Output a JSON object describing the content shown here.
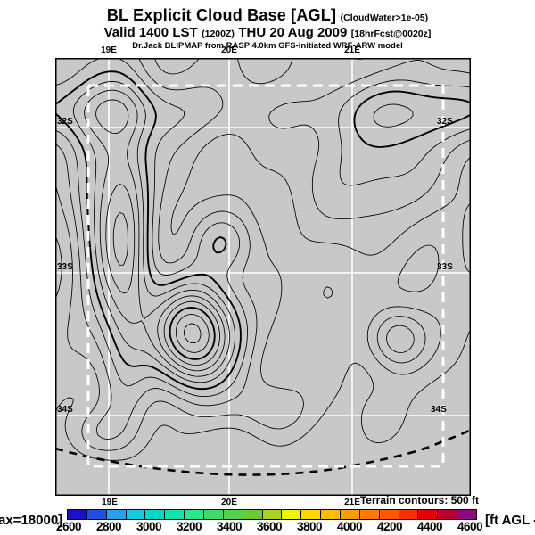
{
  "header": {
    "line1": "BL Explicit Cloud Base [AGL]",
    "line1_small": "(CloudWater>1e-05)",
    "line2_a": "Valid 1400 LST",
    "line2_b": "(1200Z)",
    "line2_c": "THU 20 Aug 2009",
    "line2_d": "[18hrFcst@0020z]",
    "line3": "Dr.Jack BLIPMAP from RASP 4.0km GFS-initiated WRF-ARW model"
  },
  "map": {
    "top_ticks": [
      "19E",
      "20E",
      "21E"
    ],
    "bottom_ticks": [
      "19E",
      "20E",
      "21E"
    ],
    "left_ticks": [
      "32S",
      "33S",
      "34S"
    ],
    "right_ticks": [
      "32S",
      "33S",
      "34S"
    ],
    "background_color": "#c8c8c8",
    "grid_color": "#ffffff",
    "contour_color": "#000000",
    "domain_box_color": "#ffffff"
  },
  "footer": {
    "max_label": "ax=18000]",
    "units_label": "[ft AGL - r",
    "terrain_note": "Terrain contours: 500 ft"
  },
  "colorbar": {
    "labels": [
      "2600",
      "2800",
      "3000",
      "3200",
      "3400",
      "3600",
      "3800",
      "4000",
      "4200",
      "4400",
      "4600"
    ],
    "colors": [
      "#1910c8",
      "#2050e0",
      "#28a0f0",
      "#18c8e0",
      "#00d8cc",
      "#10e4aa",
      "#28e88c",
      "#3cdc6a",
      "#50d24c",
      "#66cc33",
      "#a8d428",
      "#f4f400",
      "#fcd800",
      "#ffbc00",
      "#ff9c00",
      "#ff7c00",
      "#ff5a00",
      "#f43000",
      "#e00000",
      "#b80030",
      "#900880"
    ]
  },
  "chart_data": {
    "type": "contour",
    "title": "BL Explicit Cloud Base [AGL] (CloudWater>1e-05)",
    "valid_time": "1400 LST (1200Z) THU 20 Aug 2009",
    "forecast_info": "18hrFcst@0020z",
    "model_info": "Dr.Jack BLIPMAP from RASP 4.0km GFS-initiated WRF-ARW model",
    "x_ticks": [
      "19E",
      "20E",
      "21E"
    ],
    "y_ticks": [
      "32S",
      "33S",
      "34S"
    ],
    "colorbar_values_ft_agl": [
      2600,
      2800,
      3000,
      3200,
      3400,
      3600,
      3800,
      4000,
      4200,
      4400,
      4600
    ],
    "colorbar_units": "ft AGL",
    "max_value_ft": 18000,
    "terrain_contour_interval_ft": 500,
    "grid_on": true,
    "legend_position": "bottom"
  }
}
